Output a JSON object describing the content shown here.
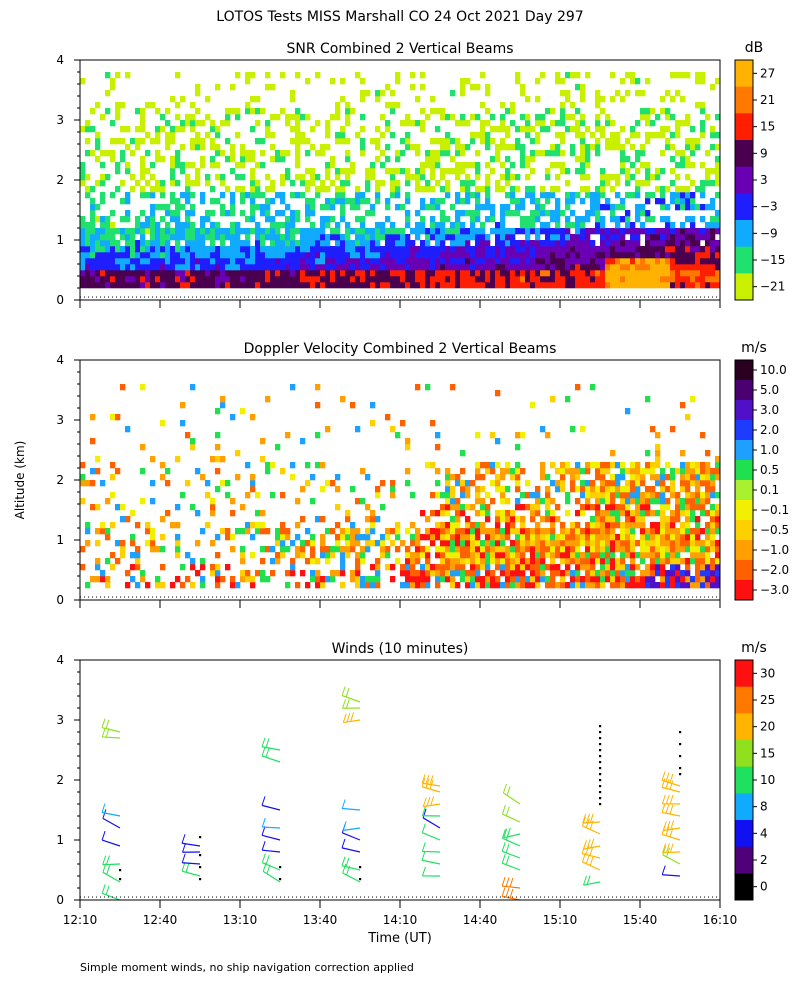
{
  "title": "LOTOS Tests MISS Marshall CO  24 Oct 2021 Day 297",
  "y_axis_label": "Altitude (km)",
  "x_axis_label": "Time (UT)",
  "footnote": "Simple moment winds, no ship navigation correction applied",
  "x_ticks": [
    "12:10",
    "12:40",
    "13:10",
    "13:40",
    "14:10",
    "14:40",
    "15:10",
    "15:40",
    "16:10"
  ],
  "y_ticks": [
    "0",
    "1",
    "2",
    "3",
    "4"
  ],
  "chart_data": [
    {
      "type": "heatmap",
      "title": "SNR Combined 2 Vertical Beams",
      "xlabel": "Time (UT)",
      "ylabel": "Altitude (km)",
      "xlim": [
        "12:10",
        "16:10"
      ],
      "ylim": [
        0,
        4
      ],
      "colorbar": {
        "unit": "dB",
        "tick_labels": [
          "27",
          "21",
          "15",
          "9",
          "3",
          "−3",
          "−9",
          "−15",
          "−21"
        ],
        "colors": [
          "#ffb300",
          "#ff7800",
          "#ff1e00",
          "#4a004e",
          "#6a00b4",
          "#1e1eff",
          "#10aaff",
          "#20e070",
          "#c8f000"
        ]
      },
      "description_levels": {
        "low_layer_km": [
          0.3,
          1.2
        ],
        "clear_air_km": [
          1.2,
          3.2
        ]
      }
    },
    {
      "type": "heatmap",
      "title": "Doppler Velocity Combined 2 Vertical Beams",
      "xlabel": "Time (UT)",
      "ylabel": "Altitude (km)",
      "xlim": [
        "12:10",
        "16:10"
      ],
      "ylim": [
        0,
        4
      ],
      "colorbar": {
        "unit": "m/s",
        "tick_labels": [
          "10.0",
          "5.0",
          "3.0",
          "2.0",
          "1.0",
          "0.5",
          "0.1",
          "−0.1",
          "−0.5",
          "−1.0",
          "−2.0",
          "−3.0"
        ],
        "colors": [
          "#2a0020",
          "#4a0070",
          "#5010c8",
          "#1e3cff",
          "#1ea0ff",
          "#20e050",
          "#a8f030",
          "#f0f000",
          "#ffd000",
          "#ffa000",
          "#ff6000",
          "#ff1010"
        ]
      }
    },
    {
      "type": "scatter",
      "title": "Winds (10 minutes)",
      "xlabel": "Time (UT)",
      "ylabel": "Altitude (km)",
      "xlim": [
        "12:10",
        "16:10"
      ],
      "ylim": [
        0,
        4
      ],
      "colorbar": {
        "unit": "m/s",
        "tick_labels": [
          "30",
          "25",
          "20",
          "15",
          "10",
          "8",
          "4",
          "2",
          "0"
        ],
        "colors": [
          "#ff1010",
          "#ff7800",
          "#ffb400",
          "#90e020",
          "#20e060",
          "#10aaff",
          "#1010f0",
          "#500078",
          "#000000"
        ]
      },
      "profiles": [
        {
          "time": "12:25",
          "altitudes_km": [
            0.0,
            0.3,
            0.6,
            0.9,
            1.2,
            1.4,
            2.7,
            2.8
          ],
          "speeds_ms": [
            14,
            14,
            14,
            4,
            4,
            8,
            18,
            18
          ]
        },
        {
          "time": "12:55",
          "altitudes_km": [
            0.4,
            0.6,
            0.8,
            0.9
          ],
          "speeds_ms": [
            14,
            4,
            4,
            4
          ]
        },
        {
          "time": "13:25",
          "altitudes_km": [
            0.3,
            0.5,
            0.8,
            1.0,
            1.2,
            1.5,
            2.3,
            2.5
          ],
          "speeds_ms": [
            14,
            14,
            4,
            4,
            8,
            4,
            14,
            14
          ]
        },
        {
          "time": "13:55",
          "altitudes_km": [
            0.3,
            0.5,
            0.8,
            1.0,
            1.2,
            1.5,
            3.0,
            3.2,
            3.3
          ],
          "speeds_ms": [
            14,
            14,
            4,
            4,
            8,
            8,
            20,
            16,
            16
          ]
        },
        {
          "time": "14:25",
          "altitudes_km": [
            0.4,
            0.6,
            0.8,
            1.0,
            1.2,
            1.4,
            1.6,
            1.8,
            1.9
          ],
          "speeds_ms": [
            10,
            10,
            10,
            10,
            4,
            10,
            20,
            22,
            22
          ]
        },
        {
          "time": "14:55",
          "altitudes_km": [
            0.0,
            0.2,
            0.5,
            0.7,
            0.9,
            1.1,
            1.3,
            1.6
          ],
          "speeds_ms": [
            28,
            25,
            14,
            14,
            14,
            14,
            16,
            16
          ]
        },
        {
          "time": "15:25",
          "altitudes_km": [
            0.3,
            0.5,
            0.7,
            0.9,
            1.1,
            1.3
          ],
          "speeds_ms": [
            14,
            22,
            22,
            22,
            22,
            22
          ]
        },
        {
          "time": "15:55",
          "altitudes_km": [
            0.4,
            0.6,
            0.8,
            1.0,
            1.2,
            1.4,
            1.6,
            1.8,
            1.9
          ],
          "speeds_ms": [
            4,
            18,
            20,
            22,
            22,
            22,
            22,
            22,
            22
          ]
        }
      ]
    }
  ]
}
